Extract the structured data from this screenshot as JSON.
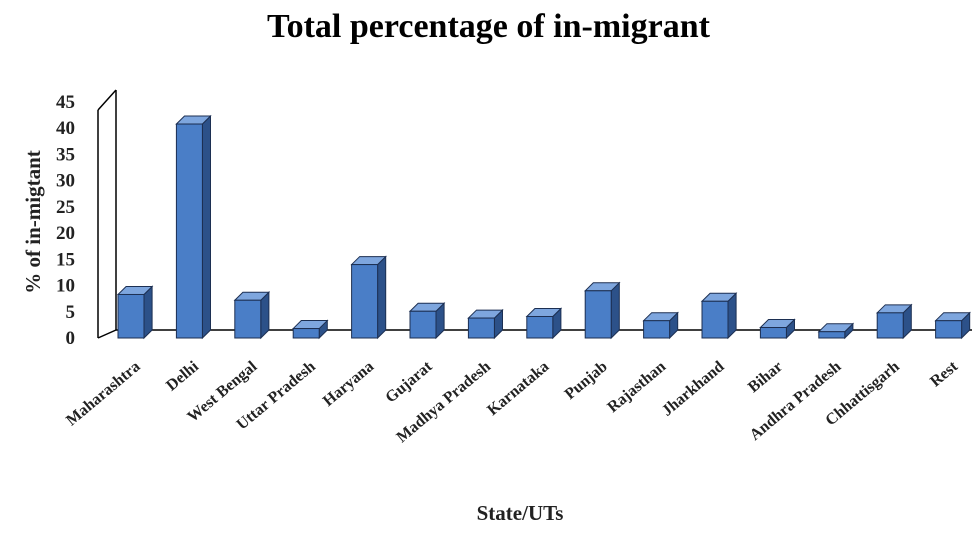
{
  "chart_data": {
    "type": "bar",
    "title": "Total percentage of in-migrant",
    "xlabel": "State/UTs",
    "ylabel": "% of in-migtant",
    "ylim": [
      0,
      45
    ],
    "yticks": [
      0,
      5,
      10,
      15,
      20,
      25,
      30,
      35,
      40,
      45
    ],
    "categories": [
      "Maharashtra",
      "Delhi",
      "West Bengal",
      "Uttar Pradesh",
      "Haryana",
      "Gujarat",
      "Madhya Pradesh",
      "Karnataka",
      "Punjab",
      "Rajasthan",
      "Jharkhand",
      "Bihar",
      "Andhra Pradesh",
      "Chhattisgarh",
      "Rest"
    ],
    "values": [
      8.3,
      40.8,
      7.2,
      1.8,
      14.0,
      5.1,
      3.8,
      4.1,
      9.0,
      3.3,
      7.0,
      2.0,
      1.2,
      4.8,
      3.3
    ],
    "grid": false,
    "legend": "none",
    "style": "3d-bar",
    "colors": {
      "bar_front": "#4a7ec7",
      "bar_side": "#2c5189",
      "bar_top": "#7ea6de",
      "bar_outline": "#1c2f52",
      "axis": "#000000"
    }
  }
}
